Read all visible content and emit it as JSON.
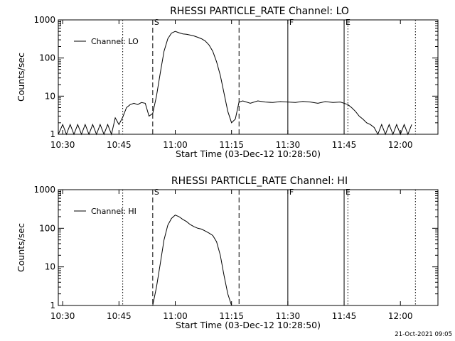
{
  "timestamp": "21-Oct-2021 09:05",
  "chart_data": [
    {
      "type": "line",
      "title": "RHESSI PARTICLE_RATE Channel: LO",
      "xlabel": "Start Time (03-Dec-12 10:28:50)",
      "ylabel": "Counts/sec",
      "yscale": "log",
      "ylim": [
        1,
        1000
      ],
      "xlim": [
        "10:28:50",
        "12:10:00"
      ],
      "x_ticks": [
        "10:30",
        "10:45",
        "11:00",
        "11:15",
        "11:30",
        "11:45",
        "12:00"
      ],
      "y_ticks": [
        "1",
        "10",
        "100",
        "1000"
      ],
      "legend": {
        "entries": [
          "Channel: LO"
        ],
        "placement": "top-left"
      },
      "grid": false,
      "markers": [
        {
          "time": "10:54",
          "style": "dashed",
          "label": "S"
        },
        {
          "time": "11:17",
          "style": "dashed",
          "label": ""
        },
        {
          "time": "11:30",
          "style": "solid",
          "label": "F"
        },
        {
          "time": "11:45",
          "style": "solid",
          "label": "E"
        },
        {
          "time": "10:46",
          "style": "dotted",
          "label": ""
        },
        {
          "time": "11:46",
          "style": "dotted",
          "label": ""
        },
        {
          "time": "12:04",
          "style": "dotted",
          "label": ""
        }
      ],
      "series": [
        {
          "x": [
            "10:28:50",
            "10:30",
            "10:31",
            "10:32",
            "10:33",
            "10:34",
            "10:35",
            "10:36",
            "10:37",
            "10:38",
            "10:39",
            "10:40",
            "10:41",
            "10:42",
            "10:43",
            "10:44",
            "10:45",
            "10:46",
            "10:47",
            "10:48",
            "10:49",
            "10:50",
            "10:51",
            "10:52",
            "10:53",
            "10:54",
            "10:55",
            "10:56",
            "10:57",
            "10:58",
            "10:59",
            "11:00",
            "11:01",
            "11:02",
            "11:03",
            "11:04",
            "11:05",
            "11:06",
            "11:07",
            "11:08",
            "11:09",
            "11:10",
            "11:11",
            "11:12",
            "11:13",
            "11:14",
            "11:15",
            "11:16",
            "11:17",
            "11:18",
            "11:20",
            "11:22",
            "11:24",
            "11:26",
            "11:28",
            "11:30",
            "11:32",
            "11:34",
            "11:36",
            "11:38",
            "11:40",
            "11:42",
            "11:44",
            "11:46",
            "11:47",
            "11:48",
            "11:49",
            "11:50",
            "11:51",
            "11:52",
            "11:53",
            "11:54",
            "11:55",
            "11:56",
            "11:57",
            "11:58",
            "11:59",
            "12:00",
            "12:01",
            "12:02",
            "12:03"
          ],
          "values": [
            1,
            1.8,
            1,
            1.8,
            1,
            1.8,
            1,
            1.8,
            1,
            1.8,
            1,
            1.8,
            1,
            1.8,
            1,
            2.7,
            1.8,
            2.8,
            5,
            6,
            6.5,
            6,
            6.8,
            6.5,
            3,
            3.5,
            10,
            40,
            150,
            320,
            450,
            500,
            460,
            430,
            420,
            400,
            380,
            350,
            320,
            280,
            220,
            150,
            80,
            35,
            12,
            4,
            2,
            2.5,
            7,
            7.5,
            6.5,
            7.5,
            7,
            6.8,
            7.2,
            7,
            6.8,
            7.3,
            7,
            6.5,
            7.2,
            6.8,
            7,
            6,
            5,
            4,
            3,
            2.5,
            2,
            1.8,
            1.5,
            1,
            1.8,
            1,
            1.8,
            1,
            1.8,
            1,
            1.8,
            1,
            1.8
          ]
        }
      ]
    },
    {
      "type": "line",
      "title": "RHESSI PARTICLE_RATE Channel: HI",
      "xlabel": "Start Time (03-Dec-12 10:28:50)",
      "ylabel": "Counts/sec",
      "yscale": "log",
      "ylim": [
        1,
        1000
      ],
      "xlim": [
        "10:28:50",
        "12:10:00"
      ],
      "x_ticks": [
        "10:30",
        "10:45",
        "11:00",
        "11:15",
        "11:30",
        "11:45",
        "12:00"
      ],
      "y_ticks": [
        "1",
        "10",
        "100",
        "1000"
      ],
      "legend": {
        "entries": [
          "Channel: HI"
        ],
        "placement": "top-left"
      },
      "grid": false,
      "markers": [
        {
          "time": "10:54",
          "style": "dashed",
          "label": "S"
        },
        {
          "time": "11:17",
          "style": "dashed",
          "label": ""
        },
        {
          "time": "11:30",
          "style": "solid",
          "label": "F"
        },
        {
          "time": "11:45",
          "style": "solid",
          "label": "E"
        },
        {
          "time": "10:46",
          "style": "dotted",
          "label": ""
        },
        {
          "time": "11:46",
          "style": "dotted",
          "label": ""
        },
        {
          "time": "12:04",
          "style": "dotted",
          "label": ""
        }
      ],
      "series": [
        {
          "x": [
            "10:54",
            "10:55",
            "10:56",
            "10:57",
            "10:58",
            "10:59",
            "11:00",
            "11:01",
            "11:02",
            "11:03",
            "11:04",
            "11:05",
            "11:06",
            "11:07",
            "11:08",
            "11:09",
            "11:10",
            "11:11",
            "11:12",
            "11:13",
            "11:14",
            "11:15"
          ],
          "values": [
            1,
            3,
            12,
            50,
            120,
            180,
            220,
            200,
            170,
            150,
            125,
            110,
            100,
            95,
            85,
            75,
            65,
            45,
            20,
            6,
            2,
            1
          ]
        }
      ]
    }
  ]
}
